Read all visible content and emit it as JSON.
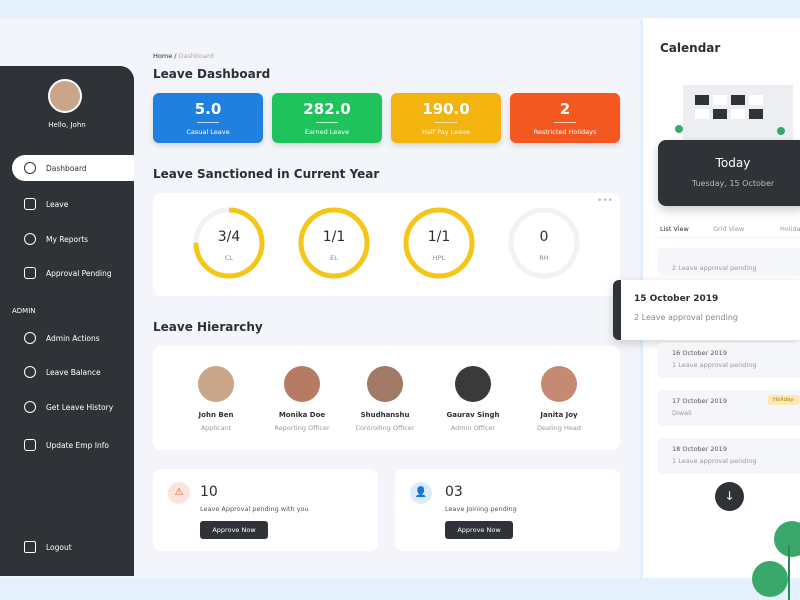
{
  "sidebar": {
    "greeting": "Hello, John",
    "menu": [
      "Dashboard",
      "Leave",
      "My Reports",
      "Approval Pending"
    ],
    "section": "ADMIN",
    "admin_menu": [
      "Admin Actions",
      "Leave Balance",
      "Get Leave History",
      "Update Emp Info"
    ],
    "logout": "Logout"
  },
  "breadcrumb": {
    "home": "Home /",
    "current": "Dashboard"
  },
  "title": "Leave Dashboard",
  "stats": [
    {
      "value": "5.0",
      "label": "Casual Leave"
    },
    {
      "value": "282.0",
      "label": "Earned Leave"
    },
    {
      "value": "190.0",
      "label": "Half Pay Leave"
    },
    {
      "value": "2",
      "label": "Restricted Holidays"
    }
  ],
  "sanctioned": {
    "title": "Leave Sanctioned in Current Year",
    "items": [
      {
        "value": "3/4",
        "label": "CL"
      },
      {
        "value": "1/1",
        "label": "EL"
      },
      {
        "value": "1/1",
        "label": "HPL"
      },
      {
        "value": "0",
        "label": "RH"
      }
    ]
  },
  "hierarchy": {
    "title": "Leave Hierarchy",
    "people": [
      {
        "name": "John Ben",
        "role": "Applicant"
      },
      {
        "name": "Monika Doe",
        "role": "Reporting Officer"
      },
      {
        "name": "Shudhanshu",
        "role": "Controlling Officer"
      },
      {
        "name": "Gaurav Singh",
        "role": "Admin Officer"
      },
      {
        "name": "Janita Joy",
        "role": "Dealing Head"
      }
    ]
  },
  "cards": [
    {
      "count": "10",
      "text": "Leave Approval pending with you",
      "button": "Approve Now"
    },
    {
      "count": "03",
      "text": "Leave Joining pending",
      "button": "Approve Now"
    }
  ],
  "calendar": {
    "title": "Calendar",
    "today": "Today",
    "date": "Tuesday, 15 October",
    "tabs": [
      "List View",
      "Grid View",
      "Holidays"
    ],
    "events": [
      {
        "text": "2 Leave approval pending"
      },
      {
        "date": "15 October 2019",
        "text": "2 Leave approval pending"
      },
      {
        "date": "16 October 2019",
        "text": "1 Leave approval pending"
      },
      {
        "date": "17 October 2019",
        "text": "Diwali",
        "tag": "Holiday"
      },
      {
        "date": "18 October 2019",
        "text": "1 Leave approval pending"
      }
    ]
  }
}
